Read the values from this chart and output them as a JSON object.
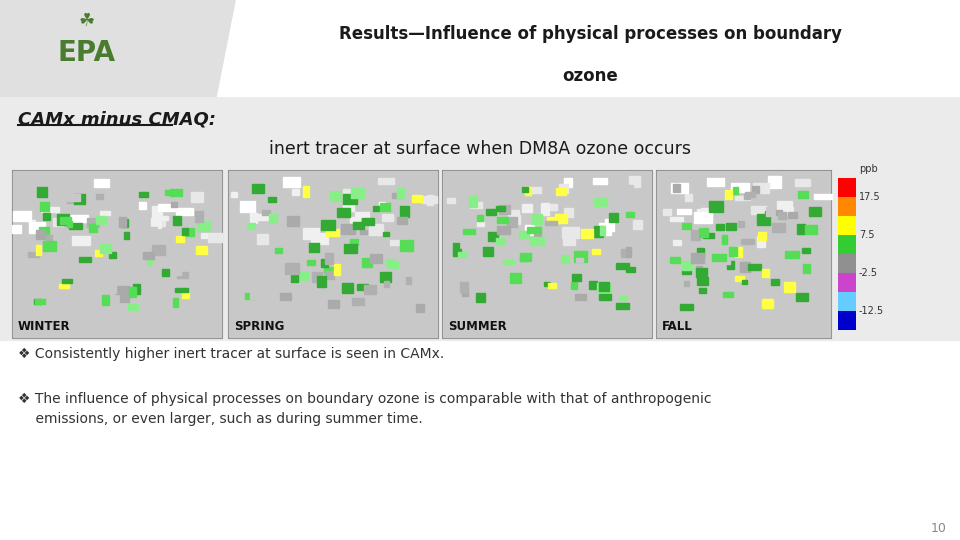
{
  "title_line1": "Results—Influence of physical processes on boundary",
  "title_line2": "ozone",
  "subtitle_italic": "CAMx minus CMAQ:",
  "subtitle_main": "inert tracer at surface when DM8A ozone occurs",
  "seasons": [
    "WINTER",
    "SPRING",
    "SUMMER",
    "FALL"
  ],
  "bullet1": "❖ Consistently higher inert tracer at surface is seen in CAMx.",
  "bullet2_line1": "❖ The influence of physical processes on boundary ozone is comparable with that of anthropogenic",
  "bullet2_line2": "    emissions, or even larger, such as during summer time.",
  "page_num": "10",
  "header_bg": "#e0e0e0",
  "slide_bg": "#e8e8e8",
  "content_bg": "#ffffff",
  "title_color": "#1a1a1a",
  "epa_green": "#4a7c2f",
  "colorbar_colors": [
    "#ff0000",
    "#ff8800",
    "#ffff00",
    "#33cc33",
    "#909090",
    "#cc44cc",
    "#66ccff",
    "#0000cc"
  ],
  "colorbar_labels": [
    "17.5",
    "7.5",
    "-2.5",
    "-12.5"
  ],
  "map_bg": "#b0b0b0"
}
